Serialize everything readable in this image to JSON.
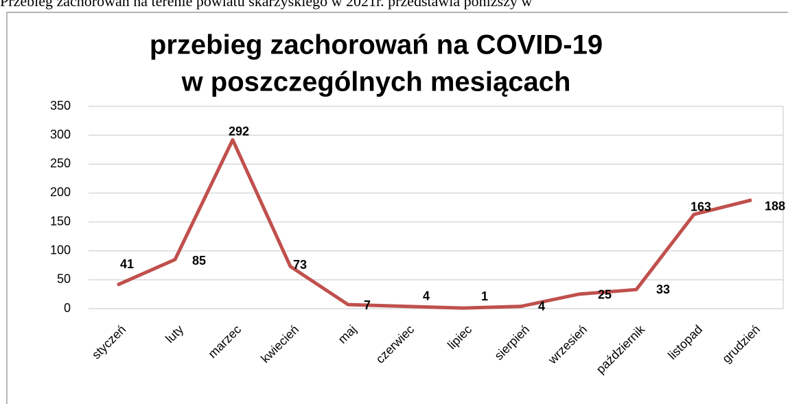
{
  "caption": "Przebieg zachorowań  na terenie powiatu skarżyskiego w 2021r. przedstawia poniższy w",
  "chart_data": {
    "type": "line",
    "title": [
      "przebieg zachorowań na COVID-19",
      "w poszczególnych  mesiącach"
    ],
    "categories": [
      "styczeń",
      "luty",
      "marzec",
      "kwiecień",
      "maj",
      "czerwiec",
      "lipiec",
      "sierpień",
      "wrzesień",
      "październik",
      "listopad",
      "grudzień"
    ],
    "values": [
      41,
      85,
      292,
      73,
      7,
      4,
      1,
      4,
      25,
      33,
      163,
      188
    ],
    "color": "#c0504d",
    "ylim": [
      0,
      350
    ],
    "yticks": [
      0,
      50,
      100,
      150,
      200,
      250,
      300,
      350
    ],
    "grid": true
  }
}
